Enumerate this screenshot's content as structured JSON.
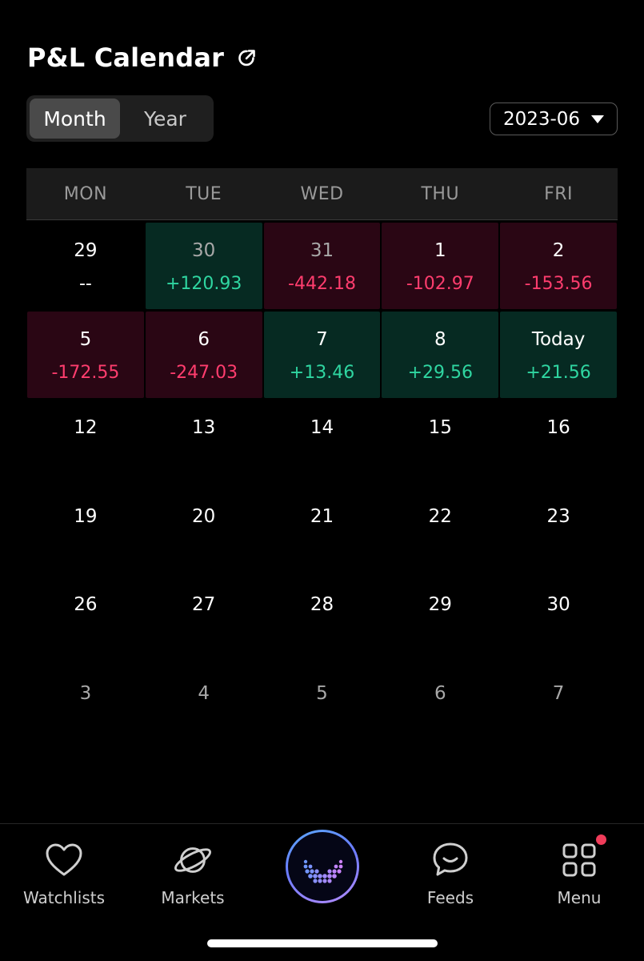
{
  "header": {
    "title": "P&L Calendar"
  },
  "segment": {
    "month_label": "Month",
    "year_label": "Year",
    "selected": "Month"
  },
  "month_select": {
    "value": "2023-06"
  },
  "weekdays": [
    "MON",
    "TUE",
    "WED",
    "THU",
    "FRI"
  ],
  "weeks": [
    [
      {
        "day": "29",
        "value": "--",
        "status": "none",
        "muted": false
      },
      {
        "day": "30",
        "value": "+120.93",
        "status": "pos",
        "muted": true
      },
      {
        "day": "31",
        "value": "-442.18",
        "status": "neg",
        "muted": true
      },
      {
        "day": "1",
        "value": "-102.97",
        "status": "neg",
        "muted": false
      },
      {
        "day": "2",
        "value": "-153.56",
        "status": "neg",
        "muted": false
      }
    ],
    [
      {
        "day": "5",
        "value": "-172.55",
        "status": "neg",
        "muted": false
      },
      {
        "day": "6",
        "value": "-247.03",
        "status": "neg",
        "muted": false
      },
      {
        "day": "7",
        "value": "+13.46",
        "status": "pos",
        "muted": false
      },
      {
        "day": "8",
        "value": "+29.56",
        "status": "pos",
        "muted": false
      },
      {
        "day": "Today",
        "value": "+21.56",
        "status": "pos",
        "muted": false
      }
    ],
    [
      {
        "day": "12",
        "value": "",
        "status": "empty",
        "muted": false
      },
      {
        "day": "13",
        "value": "",
        "status": "empty",
        "muted": false
      },
      {
        "day": "14",
        "value": "",
        "status": "empty",
        "muted": false
      },
      {
        "day": "15",
        "value": "",
        "status": "empty",
        "muted": false
      },
      {
        "day": "16",
        "value": "",
        "status": "empty",
        "muted": false
      }
    ],
    [
      {
        "day": "19",
        "value": "",
        "status": "empty",
        "muted": false
      },
      {
        "day": "20",
        "value": "",
        "status": "empty",
        "muted": false
      },
      {
        "day": "21",
        "value": "",
        "status": "empty",
        "muted": false
      },
      {
        "day": "22",
        "value": "",
        "status": "empty",
        "muted": false
      },
      {
        "day": "23",
        "value": "",
        "status": "empty",
        "muted": false
      }
    ],
    [
      {
        "day": "26",
        "value": "",
        "status": "empty",
        "muted": false
      },
      {
        "day": "27",
        "value": "",
        "status": "empty",
        "muted": false
      },
      {
        "day": "28",
        "value": "",
        "status": "empty",
        "muted": false
      },
      {
        "day": "29",
        "value": "",
        "status": "empty",
        "muted": false
      },
      {
        "day": "30",
        "value": "",
        "status": "empty",
        "muted": false
      }
    ],
    [
      {
        "day": "3",
        "value": "",
        "status": "empty",
        "muted": true
      },
      {
        "day": "4",
        "value": "",
        "status": "empty",
        "muted": true
      },
      {
        "day": "5",
        "value": "",
        "status": "empty",
        "muted": true
      },
      {
        "day": "6",
        "value": "",
        "status": "empty",
        "muted": true
      },
      {
        "day": "7",
        "value": "",
        "status": "empty",
        "muted": true
      }
    ]
  ],
  "colors": {
    "positive_text": "#2fd6a1",
    "negative_text": "#ff3d6e",
    "positive_bg": "#062a22",
    "negative_bg": "#2a0614"
  },
  "nav": {
    "items": [
      {
        "label": "Watchlists",
        "icon": "heart-icon"
      },
      {
        "label": "Markets",
        "icon": "planet-icon"
      },
      {
        "label": "",
        "icon": "assistant-icon"
      },
      {
        "label": "Feeds",
        "icon": "chat-bubble-icon"
      },
      {
        "label": "Menu",
        "icon": "grid-menu-icon"
      }
    ]
  }
}
